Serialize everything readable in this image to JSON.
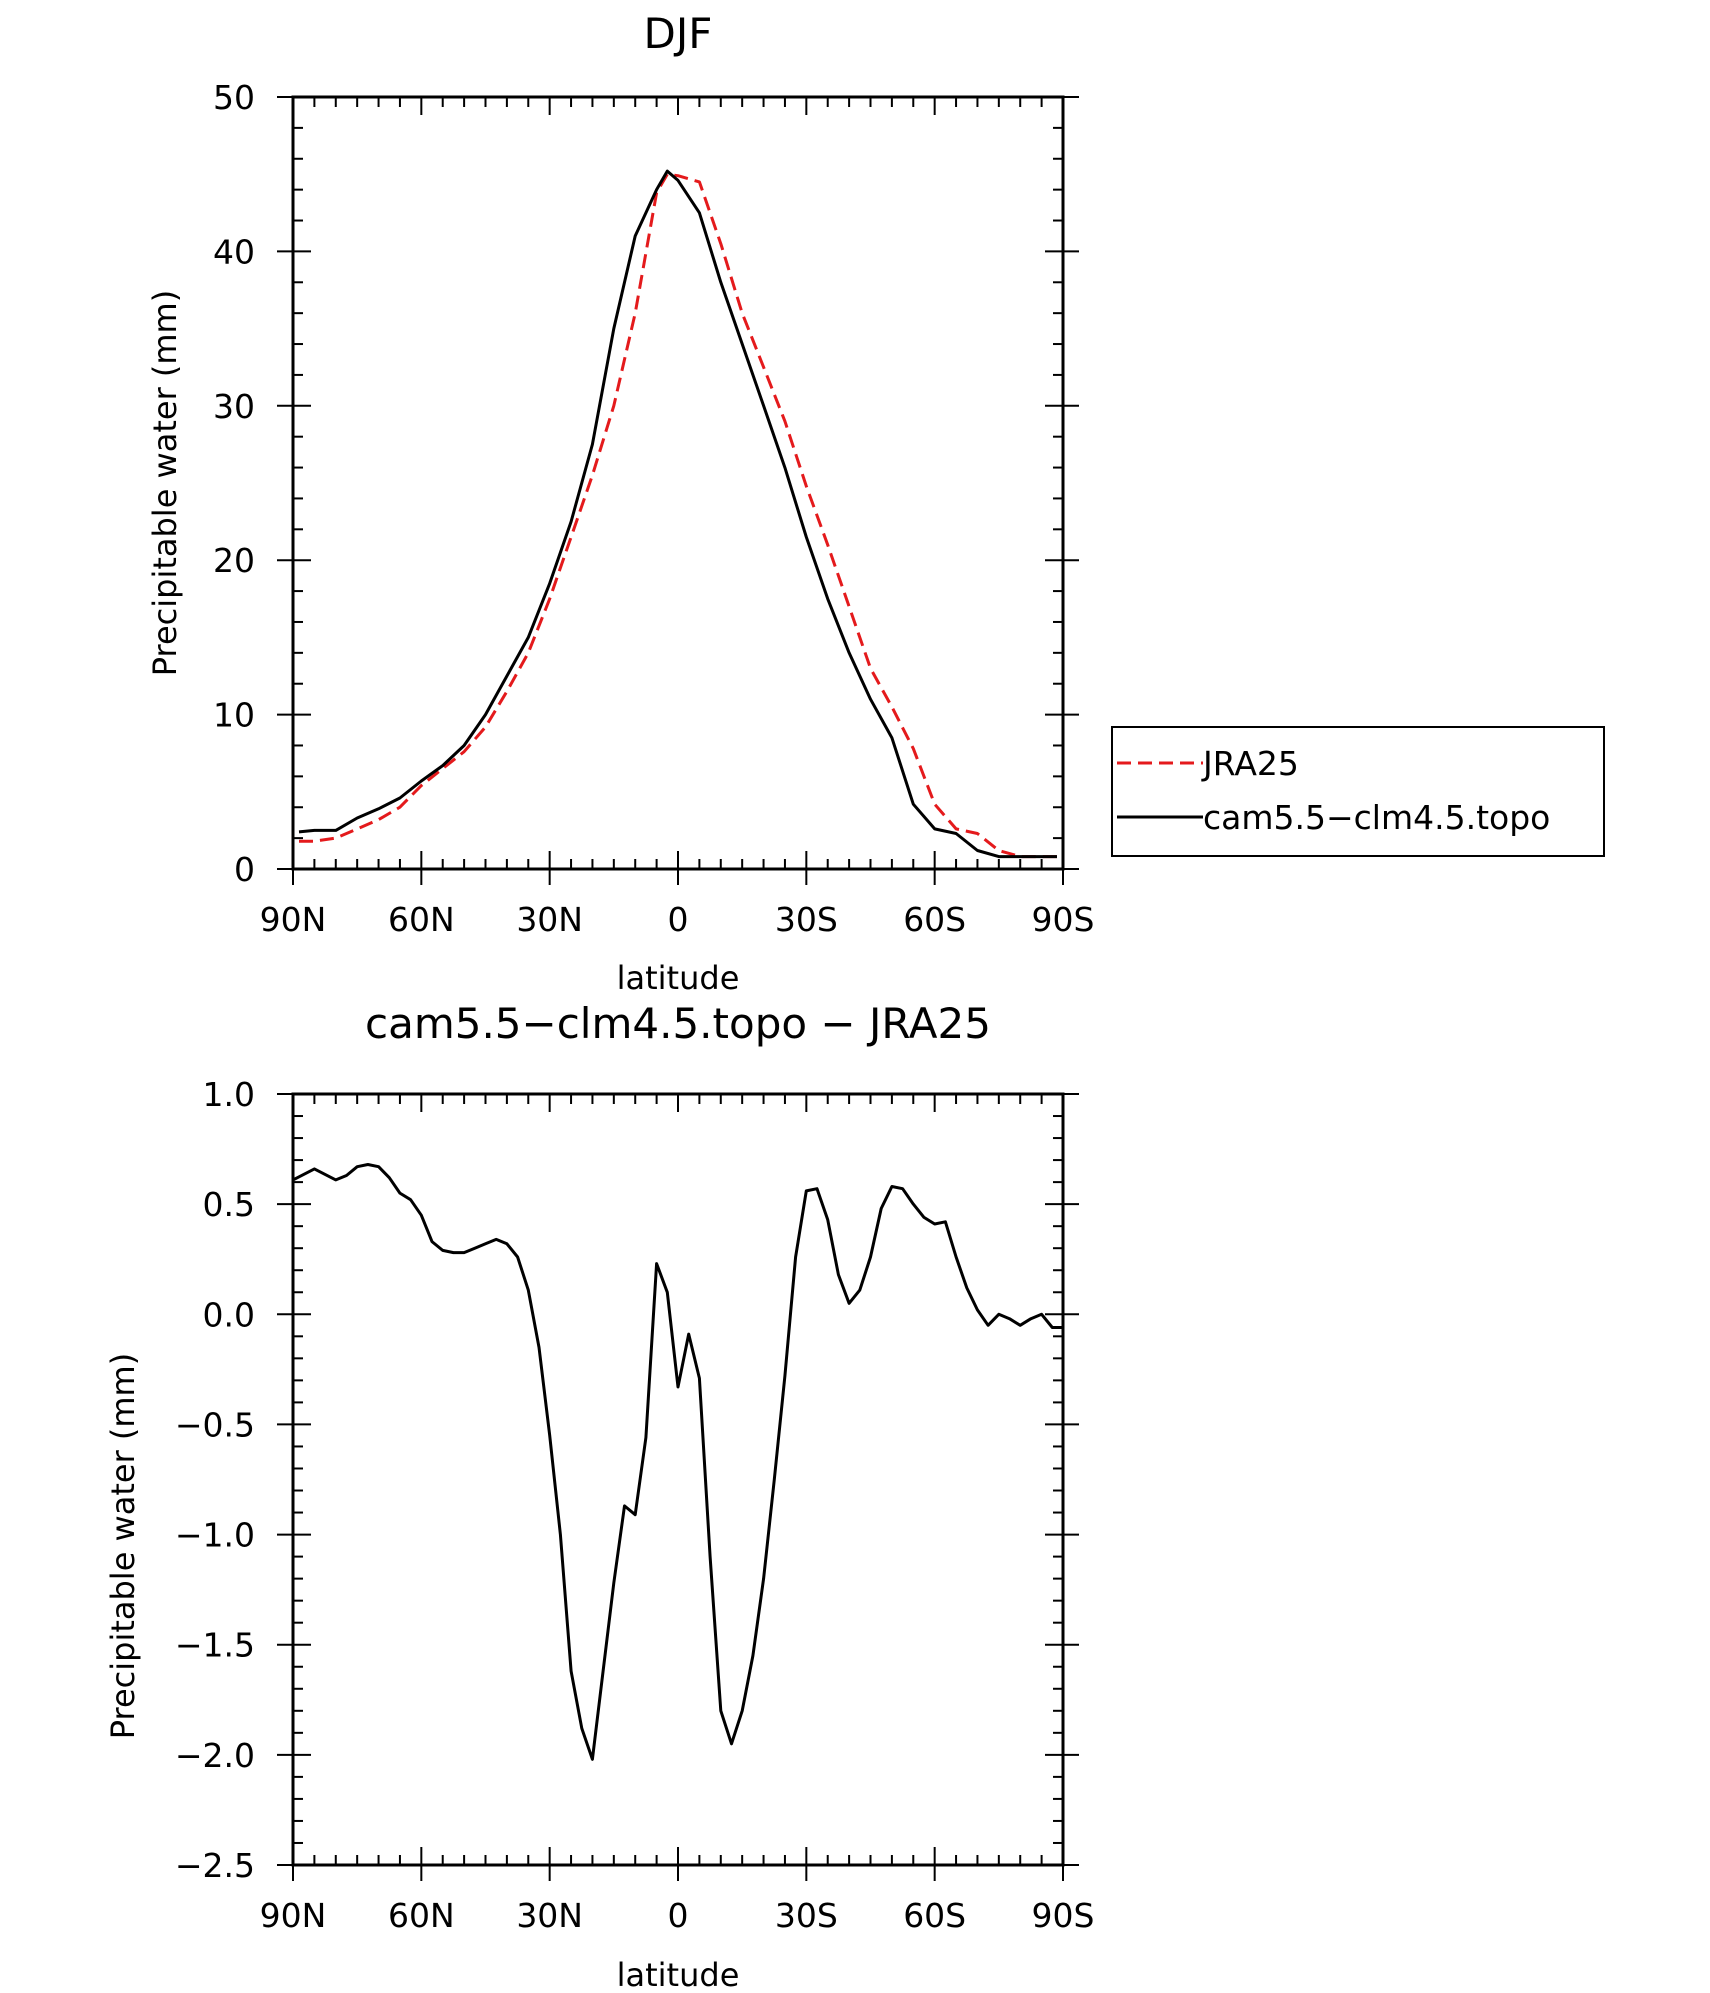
{
  "chart_data": [
    {
      "type": "line",
      "title": "DJF",
      "xlabel": "latitude",
      "ylabel": "Precipitable water (mm)",
      "xlim": [
        -90,
        90
      ],
      "ylim": [
        0,
        50
      ],
      "x_ticks": [
        -90,
        -60,
        -30,
        0,
        30,
        60,
        90
      ],
      "x_tick_labels": [
        "90N",
        "60N",
        "30N",
        "0",
        "30S",
        "60S",
        "90S"
      ],
      "y_ticks": [
        0,
        10,
        20,
        30,
        40,
        50
      ],
      "y_tick_labels": [
        "0",
        "10",
        "20",
        "30",
        "40",
        "50"
      ],
      "grid": false,
      "legend": "right",
      "series": [
        {
          "name": "JRA25",
          "color": "#e41a1c",
          "dash": "dashed",
          "x": [
            -88.6,
            -85,
            -80,
            -75,
            -70,
            -65,
            -60,
            -55,
            -50,
            -45,
            -40,
            -35,
            -30,
            -25,
            -20,
            -15,
            -10,
            -5,
            -2.5,
            0,
            5,
            10,
            15,
            20,
            25,
            30,
            35,
            40,
            45,
            50,
            55,
            60,
            65,
            70,
            75,
            80,
            85,
            88.6
          ],
          "y": [
            1.8,
            1.8,
            2.0,
            2.6,
            3.2,
            4.0,
            5.4,
            6.5,
            7.6,
            9.2,
            11.5,
            14.0,
            17.5,
            21.5,
            25.5,
            30.0,
            36.0,
            43.8,
            45.0,
            44.9,
            44.5,
            40.5,
            36.0,
            32.5,
            29.0,
            24.8,
            21.0,
            17.0,
            13.0,
            10.5,
            7.8,
            4.2,
            2.6,
            2.3,
            1.2,
            0.8,
            0.8,
            0.8
          ]
        },
        {
          "name": "cam5.5−clm4.5.topo",
          "color": "#000000",
          "dash": "solid",
          "x": [
            -88.6,
            -85,
            -80,
            -75,
            -70,
            -65,
            -60,
            -55,
            -50,
            -45,
            -40,
            -35,
            -30,
            -25,
            -20,
            -15,
            -10,
            -5,
            -2.5,
            0,
            5,
            10,
            15,
            20,
            25,
            30,
            35,
            40,
            45,
            50,
            55,
            60,
            65,
            70,
            75,
            80,
            85,
            88.6
          ],
          "y": [
            2.4,
            2.5,
            2.5,
            3.3,
            3.9,
            4.6,
            5.7,
            6.7,
            8.0,
            10.0,
            12.5,
            15.0,
            18.5,
            22.5,
            27.5,
            35.0,
            41.0,
            44.0,
            45.2,
            44.6,
            42.5,
            38.0,
            34.0,
            30.0,
            26.0,
            21.5,
            17.5,
            14.0,
            11.0,
            8.5,
            4.2,
            2.6,
            2.3,
            1.2,
            0.8,
            0.8,
            0.8,
            0.8
          ]
        }
      ]
    },
    {
      "type": "line",
      "title": "cam5.5−clm4.5.topo − JRA25",
      "xlabel": "latitude",
      "ylabel": "Precipitable water (mm)",
      "xlim": [
        -90,
        90
      ],
      "ylim": [
        -2.5,
        1.0
      ],
      "x_ticks": [
        -90,
        -60,
        -30,
        0,
        30,
        60,
        90
      ],
      "x_tick_labels": [
        "90N",
        "60N",
        "30N",
        "0",
        "30S",
        "60S",
        "90S"
      ],
      "y_ticks": [
        -2.5,
        -2.0,
        -1.5,
        -1.0,
        -0.5,
        0.0,
        0.5,
        1.0
      ],
      "y_tick_labels": [
        "−2.5",
        "−2.0",
        "−1.5",
        "−1.0",
        "−0.5",
        "0.0",
        "0.5",
        "1.0"
      ],
      "grid": false,
      "series": [
        {
          "color": "#000000",
          "x": [
            -90,
            -85,
            -80,
            -77.5,
            -75,
            -72.5,
            -70,
            -67.5,
            -65,
            -62.5,
            -60,
            -57.5,
            -55,
            -52.5,
            -50,
            -47.5,
            -45,
            -42.5,
            -40,
            -37.5,
            -35,
            -32.5,
            -30,
            -27.5,
            -25,
            -22.5,
            -20,
            -17.5,
            -15,
            -12.5,
            -10,
            -7.5,
            -5,
            -2.5,
            0,
            2.5,
            5,
            7.5,
            10,
            12.5,
            15,
            17.5,
            20,
            22.5,
            25,
            27.5,
            30,
            32.5,
            35,
            37.5,
            40,
            42.5,
            45,
            47.5,
            50,
            52.5,
            55,
            57.5,
            60,
            62.5,
            65,
            67.5,
            70,
            72.5,
            75,
            77.5,
            80,
            82.5,
            85,
            87.5,
            90
          ],
          "y": [
            0.61,
            0.66,
            0.61,
            0.63,
            0.67,
            0.68,
            0.67,
            0.62,
            0.55,
            0.52,
            0.45,
            0.33,
            0.29,
            0.28,
            0.28,
            0.3,
            0.32,
            0.34,
            0.32,
            0.26,
            0.11,
            -0.15,
            -0.55,
            -1.0,
            -1.62,
            -1.88,
            -2.02,
            -1.62,
            -1.22,
            -0.87,
            -0.91,
            -0.56,
            0.23,
            0.1,
            -0.33,
            -0.09,
            -0.29,
            -1.1,
            -1.8,
            -1.95,
            -1.8,
            -1.55,
            -1.2,
            -0.75,
            -0.28,
            0.26,
            0.56,
            0.57,
            0.43,
            0.18,
            0.05,
            0.11,
            0.26,
            0.48,
            0.58,
            0.57,
            0.5,
            0.44,
            0.41,
            0.42,
            0.26,
            0.12,
            0.02,
            -0.05,
            0.0,
            -0.02,
            -0.05,
            -0.02,
            0.0,
            -0.06,
            -0.06
          ]
        }
      ]
    }
  ]
}
